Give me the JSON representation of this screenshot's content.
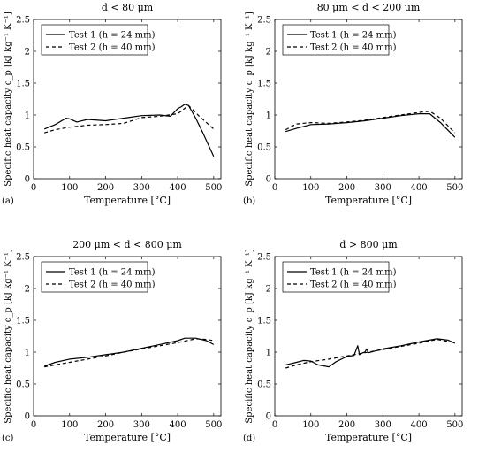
{
  "figure": {
    "shared": {
      "xlabel": "Temperature [°C]",
      "ylabel": "Specific heat capacity c_p [kJ kg⁻¹ K⁻¹]",
      "xticks": [
        0,
        100,
        200,
        300,
        400,
        500
      ],
      "yticks": [
        0,
        0.5,
        1,
        1.5,
        2,
        2.5
      ],
      "ytick_labels": [
        "0",
        "0.5",
        "1",
        "1.5",
        "2",
        "2.5"
      ],
      "legend": [
        "Test 1 (h = 24 mm)",
        "Test 2 (h = 40 mm)"
      ]
    }
  },
  "chart_data": [
    {
      "type": "line",
      "panel_label": "(a)",
      "title": "d < 80 μm",
      "xlabel": "Temperature [°C]",
      "ylabel": "Specific heat capacity c_p [kJ kg⁻¹ K⁻¹]",
      "xlim": [
        0,
        520
      ],
      "ylim": [
        0,
        2.5
      ],
      "legend_position": "top-left",
      "series": [
        {
          "name": "Test 1 (h = 24 mm)",
          "style": "solid",
          "x": [
            30,
            60,
            90,
            100,
            120,
            150,
            200,
            250,
            300,
            350,
            380,
            400,
            410,
            420,
            430,
            450,
            470,
            500
          ],
          "y": [
            0.78,
            0.85,
            0.95,
            0.94,
            0.89,
            0.93,
            0.91,
            0.95,
            0.99,
            1.0,
            0.98,
            1.1,
            1.13,
            1.17,
            1.15,
            0.95,
            0.72,
            0.35
          ]
        },
        {
          "name": "Test 2 (h = 40 mm)",
          "style": "dashed",
          "x": [
            30,
            60,
            100,
            150,
            200,
            250,
            300,
            350,
            400,
            430,
            460,
            500
          ],
          "y": [
            0.72,
            0.77,
            0.81,
            0.84,
            0.85,
            0.87,
            0.96,
            0.98,
            1.02,
            1.15,
            0.98,
            0.78
          ]
        }
      ]
    },
    {
      "type": "line",
      "panel_label": "(b)",
      "title": "80 μm < d < 200 μm",
      "xlabel": "Temperature [°C]",
      "ylabel": "Specific heat capacity c_p [kJ kg⁻¹ K⁻¹]",
      "xlim": [
        0,
        520
      ],
      "ylim": [
        0,
        2.5
      ],
      "legend_position": "top-left",
      "series": [
        {
          "name": "Test 1 (h = 24 mm)",
          "style": "solid",
          "x": [
            30,
            60,
            100,
            150,
            200,
            250,
            300,
            350,
            400,
            430,
            460,
            500
          ],
          "y": [
            0.74,
            0.79,
            0.85,
            0.86,
            0.88,
            0.91,
            0.95,
            0.99,
            1.02,
            1.02,
            0.88,
            0.65
          ]
        },
        {
          "name": "Test 2 (h = 40 mm)",
          "style": "dashed",
          "x": [
            30,
            60,
            100,
            150,
            200,
            250,
            300,
            350,
            400,
            430,
            460,
            500
          ],
          "y": [
            0.77,
            0.86,
            0.88,
            0.87,
            0.89,
            0.92,
            0.96,
            1.0,
            1.04,
            1.06,
            0.95,
            0.72
          ]
        }
      ]
    },
    {
      "type": "line",
      "panel_label": "(c)",
      "title": "200 μm < d < 800 μm",
      "xlabel": "Temperature [°C]",
      "ylabel": "Specific heat capacity c_p [kJ kg⁻¹ K⁻¹]",
      "xlim": [
        0,
        520
      ],
      "ylim": [
        0,
        2.5
      ],
      "legend_position": "top-left",
      "series": [
        {
          "name": "Test 1 (h = 24 mm)",
          "style": "solid",
          "x": [
            30,
            60,
            100,
            150,
            200,
            250,
            300,
            350,
            400,
            420,
            450,
            480,
            500
          ],
          "y": [
            0.78,
            0.84,
            0.89,
            0.92,
            0.96,
            1.0,
            1.06,
            1.12,
            1.18,
            1.22,
            1.22,
            1.18,
            1.12
          ]
        },
        {
          "name": "Test 2 (h = 40 mm)",
          "style": "dashed",
          "x": [
            30,
            60,
            100,
            150,
            200,
            250,
            300,
            350,
            400,
            450,
            480,
            500
          ],
          "y": [
            0.77,
            0.8,
            0.84,
            0.89,
            0.94,
            1.0,
            1.05,
            1.1,
            1.15,
            1.21,
            1.2,
            1.18
          ]
        }
      ]
    },
    {
      "type": "line",
      "panel_label": "(d)",
      "title": "d > 800 μm",
      "xlabel": "Temperature [°C]",
      "ylabel": "Specific heat capacity c_p [kJ kg⁻¹ K⁻¹]",
      "xlim": [
        0,
        520
      ],
      "ylim": [
        0,
        2.5
      ],
      "legend_position": "top-left",
      "series": [
        {
          "name": "Test 1 (h = 24 mm)",
          "style": "solid",
          "x": [
            30,
            60,
            80,
            100,
            120,
            150,
            170,
            200,
            220,
            230,
            235,
            240,
            250,
            255,
            260,
            300,
            350,
            400,
            450,
            480,
            500
          ],
          "y": [
            0.8,
            0.84,
            0.87,
            0.86,
            0.8,
            0.77,
            0.85,
            0.93,
            0.95,
            1.1,
            0.96,
            0.98,
            1.0,
            1.05,
            0.99,
            1.05,
            1.1,
            1.16,
            1.21,
            1.19,
            1.14
          ]
        },
        {
          "name": "Test 2 (h = 40 mm)",
          "style": "dashed",
          "x": [
            30,
            60,
            100,
            150,
            200,
            250,
            300,
            350,
            400,
            450,
            480,
            500
          ],
          "y": [
            0.75,
            0.8,
            0.85,
            0.89,
            0.94,
            0.99,
            1.04,
            1.09,
            1.14,
            1.2,
            1.17,
            1.15
          ]
        }
      ]
    }
  ]
}
